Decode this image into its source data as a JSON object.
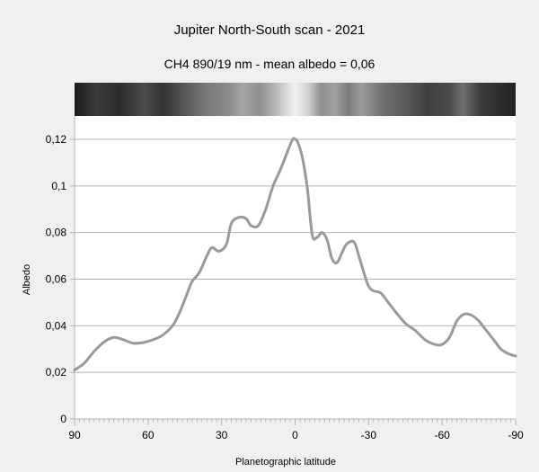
{
  "chart_data": {
    "type": "line",
    "title": "Jupiter North-South scan - 2021",
    "subtitle": "CH4 890/19 nm - mean albedo = 0,06",
    "xlabel": "Planetographic latitude",
    "ylabel": "Albedo",
    "xlim": [
      90,
      -90
    ],
    "ylim": [
      0,
      0.12
    ],
    "x_ticks": [
      90,
      60,
      30,
      0,
      -30,
      -60,
      -90
    ],
    "y_ticks": [
      0,
      0.02,
      0.04,
      0.06,
      0.08,
      0.1,
      0.12
    ],
    "x_tick_labels": [
      "90",
      "60",
      "30",
      "0",
      "-30",
      "-60",
      "-90"
    ],
    "y_tick_labels": [
      "0",
      "0,02",
      "0,04",
      "0,06",
      "0,08",
      "0,1",
      "0,12"
    ],
    "grid": "horizontal",
    "line_color": "#999999",
    "strip": "grayscale band image of the planet scan above the plot",
    "series": [
      {
        "x": [
          90,
          86,
          82,
          78,
          74,
          70,
          66,
          62,
          58,
          54,
          50,
          47,
          44,
          42,
          39,
          36,
          34,
          31,
          28,
          26,
          23,
          20,
          18,
          15,
          12,
          9,
          6,
          3,
          1,
          0,
          -1,
          -3,
          -5,
          -7,
          -9,
          -11,
          -13,
          -15,
          -17,
          -19,
          -21,
          -24,
          -26,
          -28,
          -30,
          -32,
          -35,
          -38,
          -41,
          -45,
          -49,
          -53,
          -57,
          -60,
          -63,
          -66,
          -69,
          -72,
          -75,
          -78,
          -81,
          -84,
          -87,
          -90
        ],
        "y": [
          0.021,
          0.024,
          0.029,
          0.033,
          0.035,
          0.034,
          0.0325,
          0.0328,
          0.034,
          0.036,
          0.04,
          0.046,
          0.054,
          0.059,
          0.063,
          0.07,
          0.0735,
          0.072,
          0.075,
          0.084,
          0.0865,
          0.086,
          0.083,
          0.083,
          0.09,
          0.1,
          0.107,
          0.115,
          0.12,
          0.12,
          0.119,
          0.112,
          0.099,
          0.079,
          0.078,
          0.08,
          0.077,
          0.069,
          0.067,
          0.071,
          0.075,
          0.076,
          0.07,
          0.063,
          0.057,
          0.055,
          0.054,
          0.05,
          0.046,
          0.041,
          0.038,
          0.034,
          0.032,
          0.032,
          0.035,
          0.042,
          0.045,
          0.0445,
          0.042,
          0.038,
          0.034,
          0.03,
          0.028,
          0.027
        ]
      }
    ]
  }
}
